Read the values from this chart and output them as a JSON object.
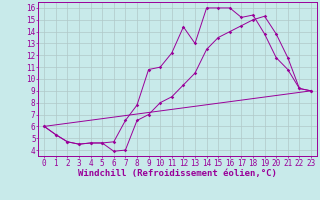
{
  "background_color": "#c8eaea",
  "line_color": "#990099",
  "grid_color": "#b0c8c8",
  "xlabel": "Windchill (Refroidissement éolien,°C)",
  "ylabel_values": [
    4,
    5,
    6,
    7,
    8,
    9,
    10,
    11,
    12,
    13,
    14,
    15,
    16
  ],
  "xlabel_values": [
    0,
    1,
    2,
    3,
    4,
    5,
    6,
    7,
    8,
    9,
    10,
    11,
    12,
    13,
    14,
    15,
    16,
    17,
    18,
    19,
    20,
    21,
    22,
    23
  ],
  "xlim": [
    -0.5,
    23.5
  ],
  "ylim": [
    3.5,
    16.5
  ],
  "line1_x": [
    0,
    1,
    2,
    3,
    4,
    5,
    6,
    7,
    8,
    9,
    10,
    11,
    12,
    13,
    14,
    15,
    16,
    17,
    18,
    19,
    20,
    21,
    22,
    23
  ],
  "line1_y": [
    6.0,
    5.3,
    4.7,
    4.5,
    4.6,
    4.6,
    4.7,
    6.5,
    7.8,
    10.8,
    11.0,
    12.2,
    14.4,
    13.0,
    16.0,
    16.0,
    16.0,
    15.2,
    15.4,
    13.8,
    11.8,
    10.8,
    9.2,
    9.0
  ],
  "line2_x": [
    0,
    1,
    2,
    3,
    4,
    5,
    6,
    7,
    8,
    9,
    10,
    11,
    12,
    13,
    14,
    15,
    16,
    17,
    18,
    19,
    20,
    21,
    22,
    23
  ],
  "line2_y": [
    6.0,
    5.3,
    4.7,
    4.5,
    4.6,
    4.6,
    3.9,
    4.0,
    6.5,
    7.0,
    8.0,
    8.5,
    9.5,
    10.5,
    12.5,
    13.5,
    14.0,
    14.5,
    15.0,
    15.3,
    13.8,
    11.8,
    9.2,
    9.0
  ],
  "line3_x": [
    0,
    23
  ],
  "line3_y": [
    6.0,
    9.0
  ],
  "tick_font_size": 5.5,
  "xlabel_font_size": 6.5
}
